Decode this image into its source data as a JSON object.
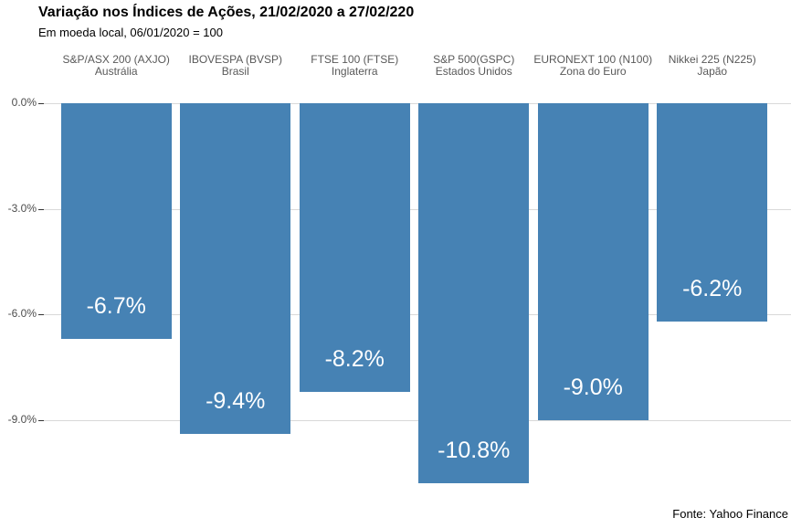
{
  "title": "Variação nos Índices de Ações, 21/02/2020 a 27/02/220",
  "subtitle": "Em moeda local, 06/01/2020 = 100",
  "source": "Fonte: Yahoo Finance",
  "chart_data": {
    "type": "bar",
    "title": "Variação nos Índices de Ações, 21/02/2020 a 27/02/220",
    "subtitle": "Em moeda local, 06/01/2020 = 100",
    "categories": [
      {
        "index": "S&P/ASX 200 (AXJO)",
        "region": "Austrália"
      },
      {
        "index": "IBOVESPA (BVSP)",
        "region": "Brasil"
      },
      {
        "index": "FTSE 100 (FTSE)",
        "region": "Inglaterra"
      },
      {
        "index": "S&P 500(GSPC)",
        "region": "Estados Unidos"
      },
      {
        "index": "EURONEXT 100 (N100)",
        "region": "Zona do Euro"
      },
      {
        "index": "Nikkei 225 (N225)",
        "region": "Japão"
      }
    ],
    "values": [
      -6.7,
      -9.4,
      -8.2,
      -10.8,
      -9.0,
      -6.2
    ],
    "bar_labels": [
      "-6.7%",
      "-9.4%",
      "-8.2%",
      "-10.8%",
      "-9.0%",
      "-6.2%"
    ],
    "y_ticks": [
      {
        "label": "0.0%",
        "value": 0
      },
      {
        "label": "-3.0%",
        "value": -3
      },
      {
        "label": "-6.0%",
        "value": -6
      },
      {
        "label": "-9.0%",
        "value": -9
      }
    ],
    "xlabel": "",
    "ylabel": "",
    "ylim": [
      -11.2,
      0
    ],
    "grid": true,
    "legend": "none",
    "bar_color": "#4682B4",
    "bar_label_color": "#FFFFFF",
    "source": "Fonte: Yahoo Finance"
  },
  "colors": {
    "bar": "#4682B4",
    "gridline": "#D9D9D9",
    "tick": "#333333",
    "axis_text": "#4D4D4D",
    "header_text": "#595959",
    "title_text": "#000000",
    "background": "#FFFFFF"
  }
}
